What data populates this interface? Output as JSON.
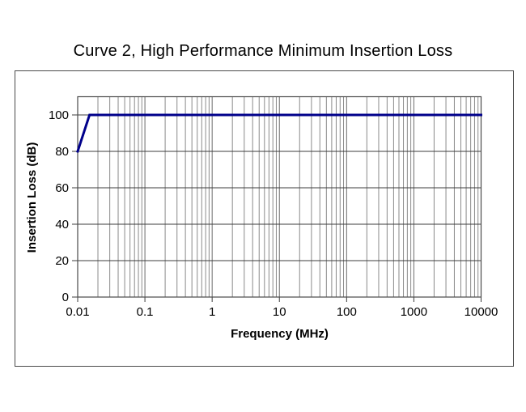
{
  "title": "Curve 2, High Performance Minimum Insertion Loss",
  "axes": {
    "x_title": "Frequency (MHz)",
    "y_title": "Insertion Loss (dB)"
  },
  "chart_data": {
    "type": "line",
    "title": "Curve 2, High Performance Minimum Insertion Loss",
    "xlabel": "Frequency (MHz)",
    "ylabel": "Insertion Loss (dB)",
    "x_scale": "log10",
    "xlim": [
      0.01,
      10000
    ],
    "ylim": [
      0,
      110
    ],
    "x_ticks": [
      0.01,
      0.1,
      1,
      10,
      100,
      1000,
      10000
    ],
    "x_tick_labels": [
      "0.01",
      "0.1",
      "1",
      "10",
      "100",
      "1000",
      "10000"
    ],
    "y_ticks": [
      0,
      20,
      40,
      60,
      80,
      100
    ],
    "y_tick_labels": [
      "0",
      "20",
      "40",
      "60",
      "80",
      "100"
    ],
    "grid": {
      "vertical_log_minor": true,
      "vertical_major": true,
      "horizontal_major": true
    },
    "legend": "none",
    "series": [
      {
        "name": "Curve 2 High Performance Minimum Insertion Loss",
        "color": "#00008B",
        "points": [
          {
            "x": 0.01,
            "y": 80
          },
          {
            "x": 0.015,
            "y": 100
          },
          {
            "x": 10000,
            "y": 100
          }
        ]
      }
    ]
  },
  "colors": {
    "background": "#ffffff",
    "curve": "#00008B",
    "grid_minor_vertical": "#8a8a8a",
    "grid_major_vertical": "#6b6b6b",
    "grid_major_horizontal": "#3d3d3d",
    "plot_border": "#4a4a4a",
    "axis_tick": "#3d3d3d",
    "frame_border": "#4a4a4a",
    "text": "#000000"
  }
}
